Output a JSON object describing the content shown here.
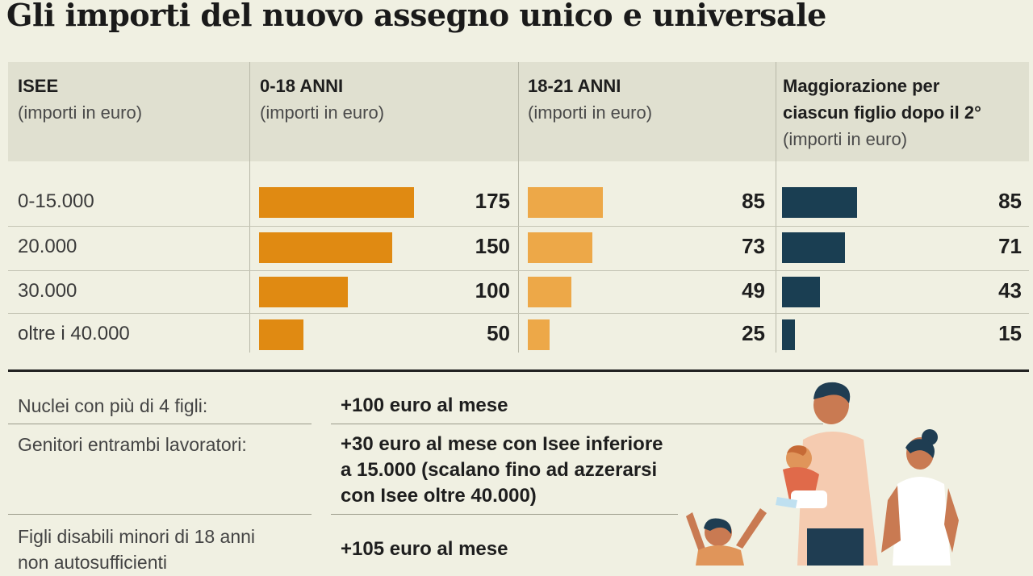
{
  "title": "Gli importi del nuovo assegno unico e universale",
  "colors": {
    "orange": "#e08a12",
    "light_orange": "#eda848",
    "navy": "#1a3e52",
    "header_bg": "#e0e0d0",
    "background": "#f0f0e2"
  },
  "columns": [
    {
      "heading": "ISEE",
      "sub": "(importi in euro)"
    },
    {
      "heading": "0-18 ANNI",
      "sub": "(importi in euro)"
    },
    {
      "heading": "18-21 ANNI",
      "sub": "(importi in euro)"
    },
    {
      "heading": "Maggiorazione per ciascun figlio dopo il 2°",
      "heading_line1": "Maggiorazione per",
      "heading_line2": "ciascun figlio dopo il 2°",
      "sub": "(importi in euro)"
    }
  ],
  "chart_data": {
    "type": "bar",
    "categories": [
      "0-15.000",
      "20.000",
      "30.000",
      "oltre i 40.000"
    ],
    "series": [
      {
        "name": "0-18 ANNI",
        "values": [
          175,
          150,
          100,
          50
        ]
      },
      {
        "name": "18-21 ANNI",
        "values": [
          85,
          73,
          49,
          25
        ]
      },
      {
        "name": "Maggiorazione per ciascun figlio dopo il 2°",
        "values": [
          85,
          71,
          43,
          15
        ]
      }
    ],
    "orientation": "horizontal",
    "title": "Gli importi del nuovo assegno unico e universale"
  },
  "notes": [
    {
      "label": "Nuclei con più di 4 figli:",
      "value": "+100 euro al mese"
    },
    {
      "label": "Genitori entrambi lavoratori:",
      "value_lines": [
        "+30 euro al mese con Isee inferiore",
        "a 15.000 (scalano fino ad azzerarsi",
        "con Isee oltre 40.000)"
      ]
    },
    {
      "label_lines": [
        "Figli disabili minori di 18 anni",
        "non autosufficienti"
      ],
      "value": "+105 euro al mese"
    }
  ],
  "illustration": "family-illustration"
}
